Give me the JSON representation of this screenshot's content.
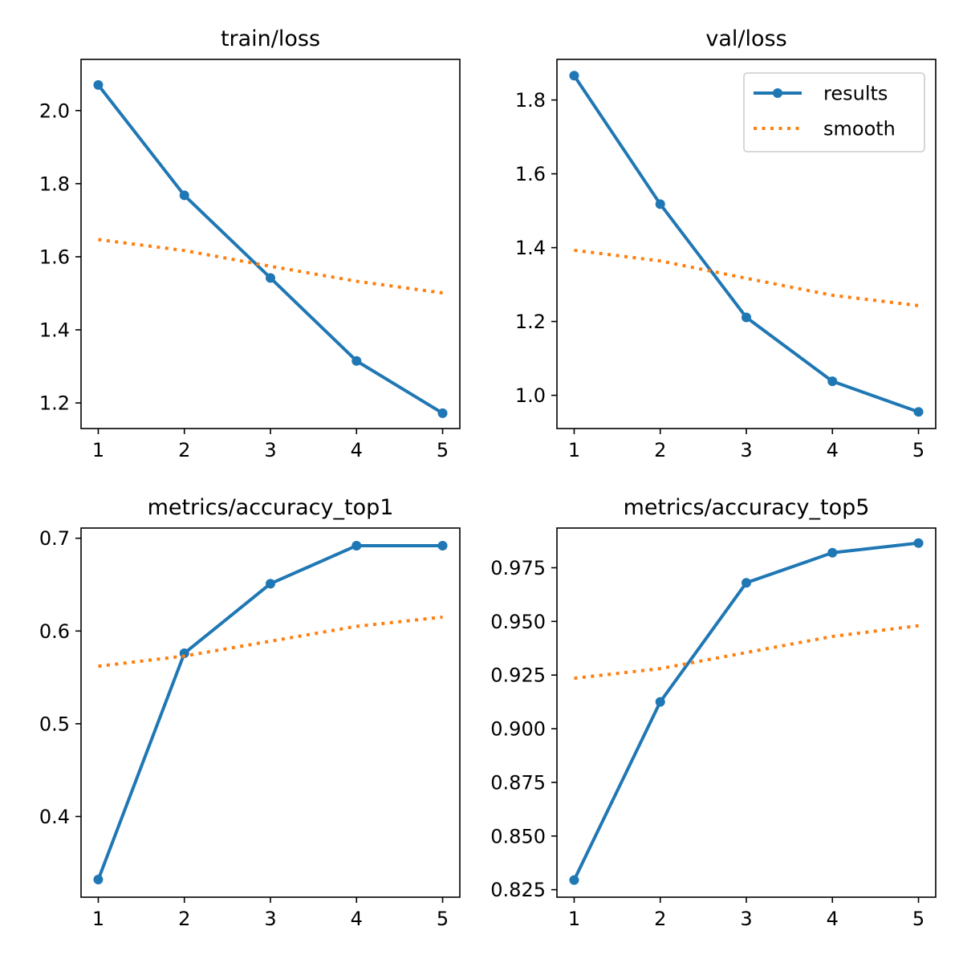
{
  "colors": {
    "results": "#1f77b4",
    "smooth": "#ff7f0e"
  },
  "legend": {
    "placement": "top-right",
    "items": [
      "results",
      "smooth"
    ],
    "shown_on_panel": 1
  },
  "chart_data": [
    {
      "type": "line",
      "title": "train/loss",
      "x": [
        1,
        2,
        3,
        4,
        5
      ],
      "xticks": [
        1,
        2,
        3,
        4,
        5
      ],
      "xlim": [
        0.8,
        5.2
      ],
      "ylim": [
        1.13,
        2.14
      ],
      "yticks": [
        "1.2",
        "1.4",
        "1.6",
        "1.8",
        "2.0"
      ],
      "grid": false,
      "series": [
        {
          "name": "results",
          "values": [
            2.07,
            1.768,
            1.542,
            1.315,
            1.172
          ]
        },
        {
          "name": "smooth",
          "values": [
            1.647,
            1.617,
            1.574,
            1.533,
            1.501
          ]
        }
      ]
    },
    {
      "type": "line",
      "title": "val/loss",
      "x": [
        1,
        2,
        3,
        4,
        5
      ],
      "xticks": [
        1,
        2,
        3,
        4,
        5
      ],
      "xlim": [
        0.8,
        5.2
      ],
      "ylim": [
        0.91,
        1.91
      ],
      "yticks": [
        "1.0",
        "1.2",
        "1.4",
        "1.6",
        "1.8"
      ],
      "grid": false,
      "series": [
        {
          "name": "results",
          "values": [
            1.866,
            1.518,
            1.211,
            1.038,
            0.955
          ]
        },
        {
          "name": "smooth",
          "values": [
            1.393,
            1.364,
            1.317,
            1.271,
            1.243
          ]
        }
      ]
    },
    {
      "type": "line",
      "title": "metrics/accuracy_top1",
      "x": [
        1,
        2,
        3,
        4,
        5
      ],
      "xticks": [
        1,
        2,
        3,
        4,
        5
      ],
      "xlim": [
        0.8,
        5.2
      ],
      "ylim": [
        0.313,
        0.711
      ],
      "yticks": [
        "0.4",
        "0.5",
        "0.6",
        "0.7"
      ],
      "grid": false,
      "series": [
        {
          "name": "results",
          "values": [
            0.332,
            0.576,
            0.651,
            0.692,
            0.692
          ]
        },
        {
          "name": "smooth",
          "values": [
            0.562,
            0.573,
            0.589,
            0.605,
            0.615
          ]
        }
      ]
    },
    {
      "type": "line",
      "title": "metrics/accuracy_top5",
      "x": [
        1,
        2,
        3,
        4,
        5
      ],
      "xticks": [
        1,
        2,
        3,
        4,
        5
      ],
      "xlim": [
        0.8,
        5.2
      ],
      "ylim": [
        0.8215,
        0.9935
      ],
      "yticks": [
        "0.825",
        "0.850",
        "0.875",
        "0.900",
        "0.925",
        "0.950",
        "0.975"
      ],
      "grid": false,
      "series": [
        {
          "name": "results",
          "values": [
            0.8295,
            0.9125,
            0.968,
            0.982,
            0.9865
          ]
        },
        {
          "name": "smooth",
          "values": [
            0.9235,
            0.928,
            0.9355,
            0.943,
            0.948
          ]
        }
      ]
    }
  ]
}
